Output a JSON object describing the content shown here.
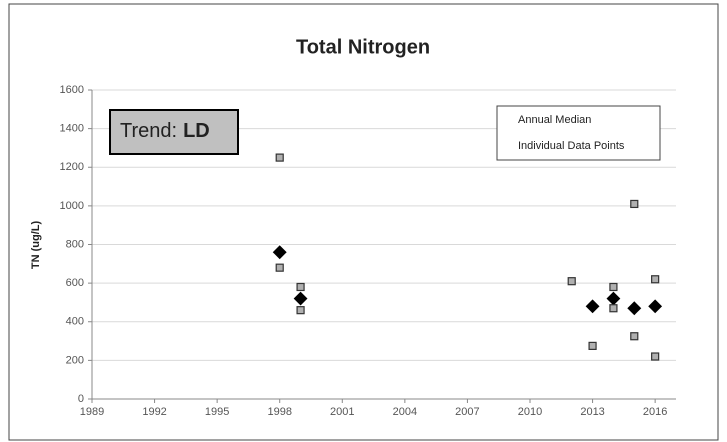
{
  "chart_data": {
    "type": "scatter",
    "title": "Total Nitrogen",
    "y_label": "TN (ug/L)",
    "annotation": {
      "label": "Trend:",
      "value": "LD"
    },
    "xlim": [
      1989,
      2017
    ],
    "xticks": [
      1989,
      1992,
      1995,
      1998,
      2001,
      2004,
      2007,
      2010,
      2013,
      2016
    ],
    "ylim": [
      0,
      1600
    ],
    "yticks": [
      0,
      200,
      400,
      600,
      800,
      1000,
      1200,
      1400,
      1600
    ],
    "grid": true,
    "legend": "upper right",
    "series": [
      {
        "name": "Annual Median",
        "color": "#000000",
        "marker": "diamond",
        "x": [
          1998,
          1999,
          2013,
          2014,
          2015,
          2016
        ],
        "values": [
          760,
          520,
          480,
          520,
          470,
          480
        ]
      },
      {
        "name": "Individual Data Points",
        "color": "#b0b0b0",
        "marker": "square",
        "x": [
          1998,
          1998,
          1999,
          1999,
          2012,
          2013,
          2014,
          2014,
          2015,
          2015,
          2016,
          2016
        ],
        "values": [
          1250,
          680,
          580,
          460,
          610,
          275,
          580,
          470,
          1010,
          325,
          620,
          220
        ]
      }
    ]
  }
}
